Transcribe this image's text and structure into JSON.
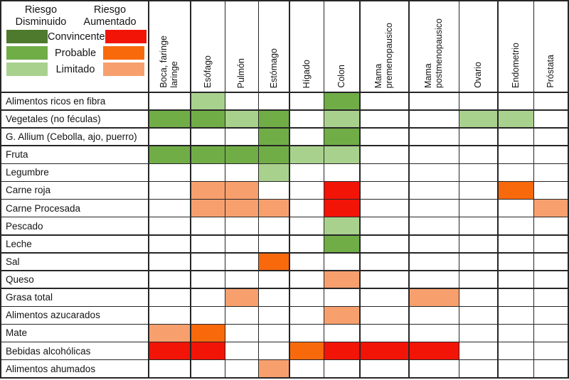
{
  "chart_data": {
    "type": "heatmap",
    "title": "",
    "legend": {
      "decreased_title": "Riesgo Disminuido",
      "increased_title": "Riesgo Aumentado",
      "levels": [
        "Convincente",
        "Probable",
        "Limitado"
      ],
      "colors": {
        "CD": "#4d7a2c",
        "PD": "#70ad47",
        "LD": "#a9d18e",
        "CU": "#f31408",
        "PU": "#f8690c",
        "LU": "#f7a06e"
      }
    },
    "columns": [
      "Boca, faringe\nlaringe",
      "Esófago",
      "Pulmón",
      "Estómago",
      "Hígado",
      "Colon",
      "Mama\npremenopausico",
      "Mama\npostmenopausico",
      "Ovario",
      "Endometrio",
      "Próstata"
    ],
    "rows": [
      "Alimentos ricos en fibra",
      "Vegetales (no féculas)",
      "G. Allium (Cebolla, ajo, puerro)",
      "Fruta",
      "Legumbre",
      "Carne roja",
      "Carne Procesada",
      "Pescado",
      "Leche",
      "Sal",
      "Queso",
      "Grasa total",
      "Alimentos azucarados",
      "Mate",
      "Bebidas alcohólicas",
      "Alimentos ahumados"
    ],
    "matrix": [
      [
        "",
        "LD",
        "",
        "",
        "",
        "PD",
        "",
        "",
        "",
        "",
        ""
      ],
      [
        "PD",
        "PD",
        "LD",
        "PD",
        "",
        "LD",
        "",
        "",
        "LD",
        "LD",
        ""
      ],
      [
        "",
        "",
        "",
        "PD",
        "",
        "PD",
        "",
        "",
        "",
        "",
        ""
      ],
      [
        "PD",
        "PD",
        "PD",
        "PD",
        "LD",
        "LD",
        "",
        "",
        "",
        "",
        ""
      ],
      [
        "",
        "",
        "",
        "LD",
        "",
        "",
        "",
        "",
        "",
        "",
        ""
      ],
      [
        "",
        "LU",
        "LU",
        "",
        "",
        "CU",
        "",
        "",
        "",
        "PU",
        ""
      ],
      [
        "",
        "LU",
        "LU",
        "LU",
        "",
        "CU",
        "",
        "",
        "",
        "",
        "LU"
      ],
      [
        "",
        "",
        "",
        "",
        "",
        "LD",
        "",
        "",
        "",
        "",
        ""
      ],
      [
        "",
        "",
        "",
        "",
        "",
        "PD",
        "",
        "",
        "",
        "",
        ""
      ],
      [
        "",
        "",
        "",
        "PU",
        "",
        "",
        "",
        "",
        "",
        "",
        ""
      ],
      [
        "",
        "",
        "",
        "",
        "",
        "LU",
        "",
        "",
        "",
        "",
        ""
      ],
      [
        "",
        "",
        "LU",
        "",
        "",
        "",
        "",
        "LU",
        "",
        "",
        ""
      ],
      [
        "",
        "",
        "",
        "",
        "",
        "LU",
        "",
        "",
        "",
        "",
        ""
      ],
      [
        "LU",
        "PU",
        "",
        "",
        "",
        "",
        "",
        "",
        "",
        "",
        ""
      ],
      [
        "CU",
        "CU",
        "",
        "",
        "PU",
        "CU",
        "CU",
        "CU",
        "",
        "",
        ""
      ],
      [
        "",
        "",
        "",
        "LU",
        "",
        "",
        "",
        "",
        "",
        "",
        ""
      ]
    ]
  }
}
